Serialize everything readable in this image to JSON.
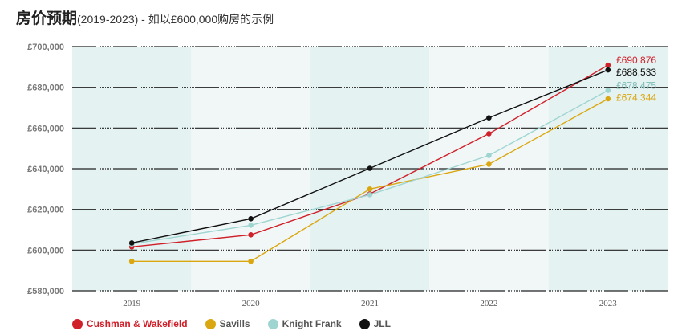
{
  "title": "房价预期",
  "subtitle": "(2019-2023) - 如以£600,000购房的示例",
  "chart_data": {
    "type": "line",
    "title": "房价预期",
    "subtitle": "(2019-2023) - 如以£600,000购房的示例",
    "categories": [
      "2019",
      "2020",
      "2021",
      "2022",
      "2023"
    ],
    "ylim": [
      580000,
      700000
    ],
    "yticks": [
      580000,
      600000,
      620000,
      640000,
      660000,
      680000,
      700000
    ],
    "ytick_labels": [
      "£580,000",
      "£600,000",
      "£620,000",
      "£640,000",
      "£660,000",
      "£680,000",
      "£700,000"
    ],
    "grid": true,
    "legend": "bottom-left",
    "series": [
      {
        "name": "Cushman & Wakefield",
        "color": "#d0202a",
        "values": [
          601600,
          607500,
          627600,
          657200,
          690876
        ],
        "end_label": "£690,876"
      },
      {
        "name": "Savills",
        "color": "#dba710",
        "values": [
          594500,
          594500,
          630000,
          642200,
          674344
        ],
        "end_label": "£674,344"
      },
      {
        "name": "Knight Frank",
        "color": "#9fd5d1",
        "values": [
          603000,
          612200,
          627200,
          646500,
          678475
        ],
        "end_label": "£678,475"
      },
      {
        "name": "JLL",
        "color": "#111111",
        "values": [
          603500,
          615400,
          640200,
          665000,
          688533
        ],
        "end_label": "£688,533"
      }
    ]
  }
}
